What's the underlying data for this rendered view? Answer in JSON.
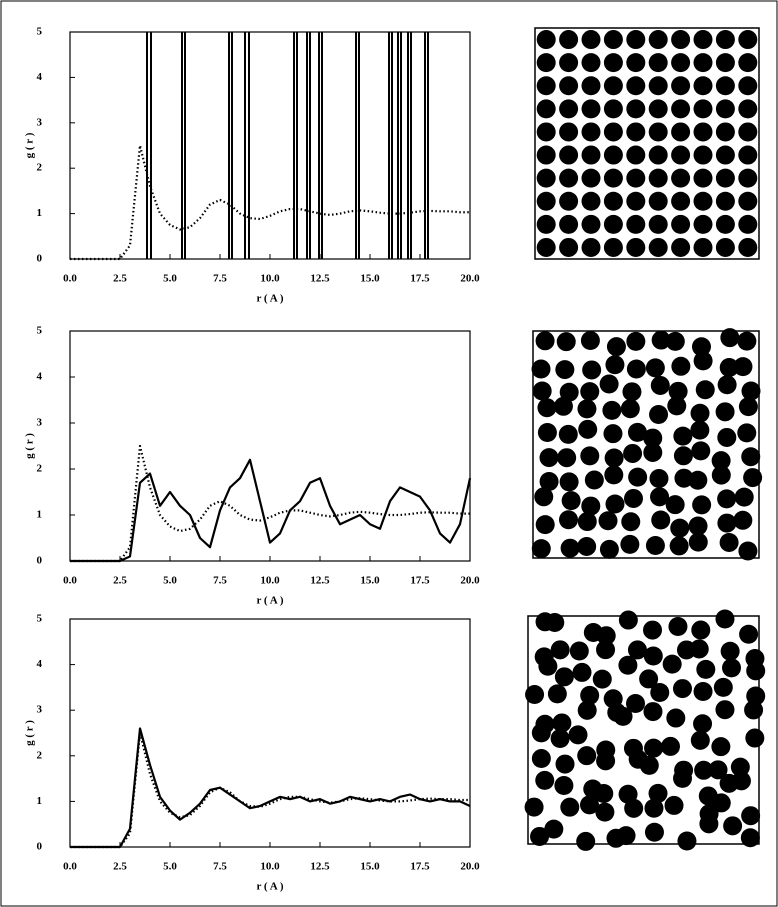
{
  "chart_data": [
    {
      "type": "line",
      "xlabel": "r ( A )",
      "ylabel": "g ( r )",
      "xlim": [
        0,
        20
      ],
      "ylim": [
        0,
        5
      ],
      "xticks": [
        {
          "value": 0,
          "label": "0.0"
        },
        {
          "value": 2.5,
          "label": "2.5"
        },
        {
          "value": 5,
          "label": "5.0"
        },
        {
          "value": 7.5,
          "label": "7.5"
        },
        {
          "value": 10,
          "label": "10.0"
        },
        {
          "value": 12.5,
          "label": "12.5"
        },
        {
          "value": 15,
          "label": "15.0"
        },
        {
          "value": 17.5,
          "label": "17.5"
        },
        {
          "value": 20,
          "label": "20.0"
        }
      ],
      "yticks": [
        0,
        1,
        2,
        3,
        4,
        5
      ],
      "x": [
        0,
        0.5,
        1,
        1.5,
        2,
        2.5,
        3,
        3.5,
        4,
        4.5,
        5,
        5.5,
        6,
        6.5,
        7,
        7.5,
        8,
        8.5,
        9,
        9.5,
        10,
        10.5,
        11,
        11.5,
        12,
        12.5,
        13,
        13.5,
        14,
        14.5,
        15,
        15.5,
        16,
        16.5,
        17,
        17.5,
        18,
        18.5,
        19,
        19.5,
        20
      ],
      "series": [
        {
          "color": "#000000",
          "line_style": "dotted",
          "values": [
            0,
            0,
            0,
            0,
            0,
            0,
            0.3,
            2.5,
            1.6,
            1.0,
            0.75,
            0.65,
            0.7,
            0.9,
            1.2,
            1.3,
            1.2,
            1.0,
            0.9,
            0.88,
            0.95,
            1.05,
            1.1,
            1.1,
            1.05,
            1.0,
            0.97,
            1.0,
            1.05,
            1.07,
            1.05,
            1.02,
            1.0,
            1.0,
            1.02,
            1.05,
            1.06,
            1.05,
            1.05,
            1.03,
            1.03
          ]
        }
      ],
      "vlines": [
        3.85,
        4.05,
        5.6,
        5.75,
        7.95,
        8.1,
        8.75,
        8.95,
        11.2,
        11.35,
        11.85,
        12.0,
        12.45,
        12.6,
        14.3,
        14.45,
        15.95,
        16.1,
        16.4,
        16.55,
        16.9,
        17.05,
        17.75,
        17.9
      ],
      "vline_color": "#000000"
    },
    {
      "type": "line",
      "xlabel": "r ( A )",
      "ylabel": "g ( r )",
      "xlim": [
        0,
        20
      ],
      "ylim": [
        0,
        5
      ],
      "xticks": [
        {
          "value": 0,
          "label": "0.0"
        },
        {
          "value": 2.5,
          "label": "2.5"
        },
        {
          "value": 5,
          "label": "5.0"
        },
        {
          "value": 7.5,
          "label": "7.5"
        },
        {
          "value": 10,
          "label": "10.0"
        },
        {
          "value": 12.5,
          "label": "12.5"
        },
        {
          "value": 15,
          "label": "15.0"
        },
        {
          "value": 17.5,
          "label": "17.5"
        },
        {
          "value": 20,
          "label": "20.0"
        }
      ],
      "yticks": [
        0,
        1,
        2,
        3,
        4,
        5
      ],
      "x": [
        0,
        0.5,
        1,
        1.5,
        2,
        2.5,
        3,
        3.5,
        4,
        4.5,
        5,
        5.5,
        6,
        6.5,
        7,
        7.5,
        8,
        8.5,
        9,
        9.5,
        10,
        10.5,
        11,
        11.5,
        12,
        12.5,
        13,
        13.5,
        14,
        14.5,
        15,
        15.5,
        16,
        16.5,
        17,
        17.5,
        18,
        18.5,
        19,
        19.5,
        20
      ],
      "series": [
        {
          "color": "#000000",
          "line_style": "dotted",
          "values": [
            0,
            0,
            0,
            0,
            0,
            0,
            0.3,
            2.5,
            1.6,
            1.0,
            0.75,
            0.65,
            0.7,
            0.9,
            1.2,
            1.3,
            1.2,
            1.0,
            0.9,
            0.88,
            0.95,
            1.05,
            1.1,
            1.1,
            1.05,
            1.0,
            0.97,
            1.0,
            1.05,
            1.07,
            1.05,
            1.02,
            1.0,
            1.0,
            1.02,
            1.05,
            1.06,
            1.05,
            1.05,
            1.03,
            1.03
          ]
        },
        {
          "color": "#000000",
          "line_style": "solid",
          "values": [
            0,
            0,
            0,
            0,
            0,
            0,
            0.1,
            1.7,
            1.9,
            1.2,
            1.5,
            1.2,
            1.0,
            0.5,
            0.3,
            1.1,
            1.6,
            1.8,
            2.2,
            1.3,
            0.4,
            0.6,
            1.1,
            1.3,
            1.7,
            1.8,
            1.2,
            0.8,
            0.9,
            1.0,
            0.8,
            0.7,
            1.3,
            1.6,
            1.5,
            1.4,
            1.1,
            0.6,
            0.4,
            0.8,
            1.8
          ]
        }
      ]
    },
    {
      "type": "line",
      "xlabel": "r ( A )",
      "ylabel": "g ( r )",
      "xlim": [
        0,
        20
      ],
      "ylim": [
        0,
        5
      ],
      "xticks": [
        {
          "value": 0,
          "label": "0.0"
        },
        {
          "value": 2.5,
          "label": "2.5"
        },
        {
          "value": 5,
          "label": "5.0"
        },
        {
          "value": 7.5,
          "label": "7.5"
        },
        {
          "value": 10,
          "label": "10.0"
        },
        {
          "value": 12.5,
          "label": "12.5"
        },
        {
          "value": 15,
          "label": "15.0"
        },
        {
          "value": 17.5,
          "label": "17.5"
        },
        {
          "value": 20,
          "label": "20.0"
        }
      ],
      "yticks": [
        0,
        1,
        2,
        3,
        4,
        5
      ],
      "x": [
        0,
        0.5,
        1,
        1.5,
        2,
        2.5,
        3,
        3.5,
        4,
        4.5,
        5,
        5.5,
        6,
        6.5,
        7,
        7.5,
        8,
        8.5,
        9,
        9.5,
        10,
        10.5,
        11,
        11.5,
        12,
        12.5,
        13,
        13.5,
        14,
        14.5,
        15,
        15.5,
        16,
        16.5,
        17,
        17.5,
        18,
        18.5,
        19,
        19.5,
        20
      ],
      "series": [
        {
          "color": "#000000",
          "line_style": "dotted",
          "values": [
            0,
            0,
            0,
            0,
            0,
            0,
            0.3,
            2.5,
            1.6,
            1.0,
            0.75,
            0.65,
            0.7,
            0.9,
            1.2,
            1.3,
            1.2,
            1.0,
            0.9,
            0.88,
            0.95,
            1.05,
            1.1,
            1.1,
            1.05,
            1.0,
            0.97,
            1.0,
            1.05,
            1.07,
            1.05,
            1.02,
            1.0,
            1.0,
            1.02,
            1.05,
            1.06,
            1.05,
            1.05,
            1.03,
            1.03
          ]
        },
        {
          "color": "#000000",
          "line_style": "solid",
          "values": [
            0,
            0,
            0,
            0,
            0,
            0,
            0.4,
            2.6,
            1.8,
            1.1,
            0.8,
            0.6,
            0.75,
            0.95,
            1.25,
            1.3,
            1.15,
            1.0,
            0.85,
            0.9,
            1.0,
            1.1,
            1.05,
            1.1,
            1.0,
            1.05,
            0.95,
            1.0,
            1.1,
            1.05,
            1.0,
            1.05,
            1.0,
            1.1,
            1.15,
            1.05,
            1.0,
            1.05,
            1.0,
            1.0,
            0.9
          ]
        }
      ]
    }
  ]
}
